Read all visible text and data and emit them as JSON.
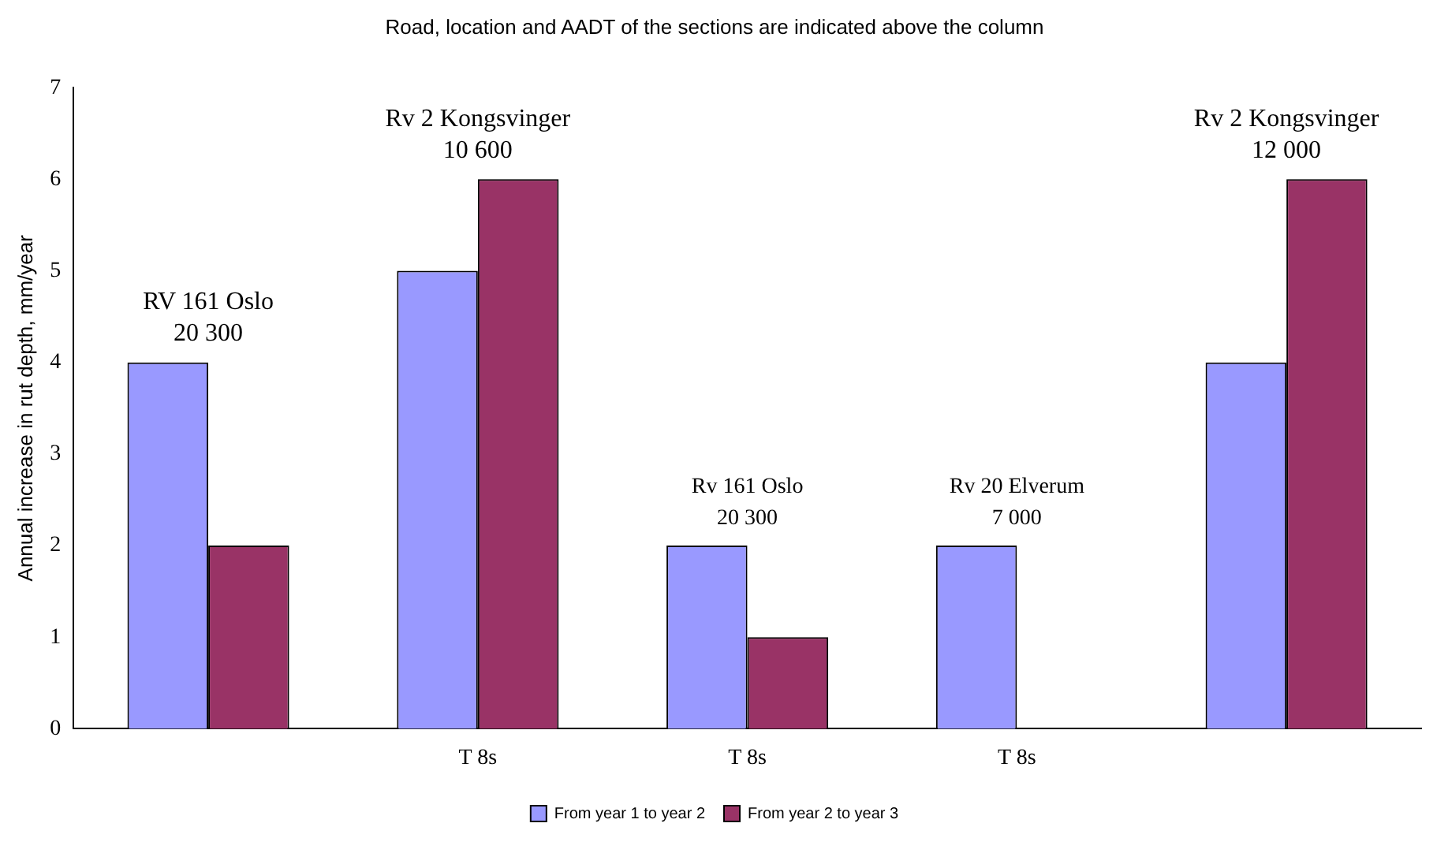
{
  "chart_data": {
    "type": "bar",
    "title": "Road, location and AADT of the sections are indicated above the column",
    "ylabel": "Annual increase in rut depth, mm/year",
    "categories": [
      null,
      "T 8s",
      "T 8s",
      "T 8s",
      null
    ],
    "series": [
      {
        "name": "From year 1 to year 2",
        "color": "#9999ff",
        "values": [
          4,
          5,
          2,
          2,
          4
        ]
      },
      {
        "name": "From year 2 to year 3",
        "color": "#993366",
        "values": [
          2,
          6,
          1,
          null,
          6
        ]
      }
    ],
    "annotations": [
      "RV 161 Oslo\n20 300",
      "Rv 2 Kongsvinger\n10 600",
      "Rv 161 Oslo\n20 300",
      "Rv 20 Elverum\n7 000",
      "Rv 2 Kongsvinger\n12 000"
    ],
    "ylim": [
      0,
      7
    ],
    "yticks": [
      0,
      1,
      2,
      3,
      4,
      5,
      6,
      7
    ],
    "grid": false,
    "legend": "bottom"
  }
}
